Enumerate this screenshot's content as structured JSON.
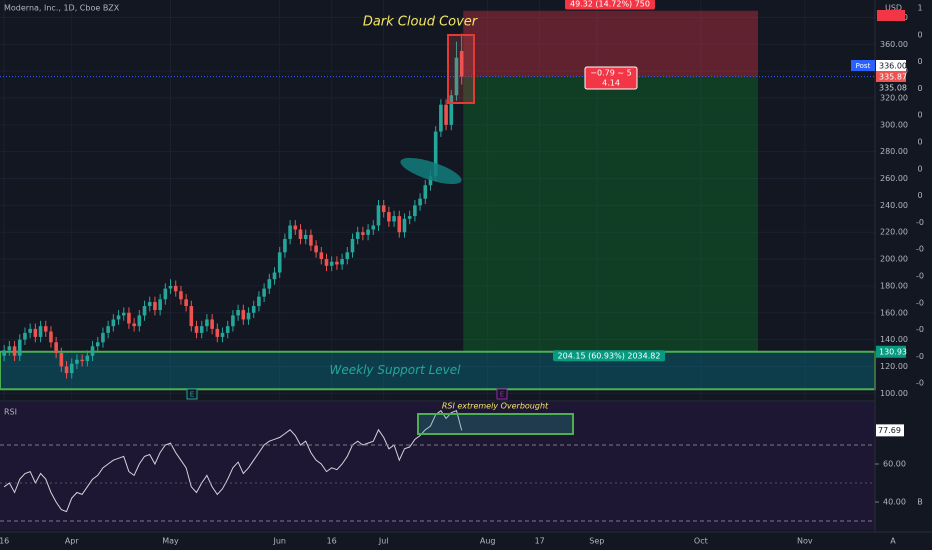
{
  "chart_data": {
    "type": "candlestick",
    "title": "Moderna, Inc., 1D, Cboe BZX",
    "currency": "USD",
    "x": [
      0,
      1,
      2,
      3,
      4,
      5,
      6,
      7,
      8,
      9,
      10,
      11,
      12,
      13,
      14,
      15,
      16,
      17,
      18,
      19,
      20,
      21,
      22,
      23,
      24,
      25,
      26,
      27,
      28,
      29,
      30,
      31,
      32,
      33,
      34,
      35,
      36,
      37,
      38,
      39,
      40,
      41,
      42,
      43,
      44,
      45,
      46,
      47,
      48,
      49,
      50,
      51,
      52,
      53,
      54,
      55,
      56,
      57,
      58,
      59,
      60,
      61,
      62,
      63,
      64,
      65,
      66,
      67,
      68,
      69,
      70,
      71,
      72,
      73,
      74,
      75,
      76,
      77,
      78,
      79,
      80,
      81,
      82,
      83,
      84,
      85,
      86,
      87,
      88
    ],
    "open": [
      128,
      132,
      135,
      128,
      140,
      145,
      148,
      142,
      150,
      146,
      138,
      130,
      120,
      115,
      122,
      125,
      124,
      128,
      135,
      138,
      145,
      150,
      155,
      158,
      160,
      152,
      150,
      158,
      165,
      168,
      162,
      170,
      178,
      180,
      176,
      170,
      165,
      150,
      145,
      150,
      155,
      148,
      142,
      145,
      150,
      158,
      162,
      155,
      160,
      165,
      172,
      178,
      185,
      190,
      205,
      215,
      225,
      222,
      215,
      218,
      210,
      205,
      200,
      195,
      198,
      196,
      200,
      205,
      215,
      220,
      218,
      222,
      225,
      240,
      235,
      228,
      232,
      220,
      230,
      232,
      240,
      245,
      255,
      262,
      295,
      315,
      300,
      322,
      355
    ],
    "high": [
      136,
      139,
      139,
      144,
      149,
      152,
      152,
      154,
      154,
      150,
      142,
      134,
      124,
      126,
      129,
      129,
      132,
      139,
      142,
      149,
      154,
      159,
      162,
      164,
      164,
      156,
      162,
      169,
      172,
      172,
      174,
      182,
      185,
      184,
      180,
      174,
      169,
      154,
      154,
      159,
      159,
      152,
      149,
      154,
      162,
      166,
      166,
      164,
      169,
      176,
      182,
      189,
      194,
      209,
      219,
      229,
      229,
      226,
      222,
      222,
      214,
      209,
      204,
      202,
      202,
      204,
      209,
      219,
      224,
      224,
      226,
      229,
      244,
      244,
      239,
      236,
      236,
      234,
      236,
      244,
      249,
      259,
      266,
      299,
      319,
      319,
      326,
      362,
      368
    ],
    "low": [
      124,
      128,
      124,
      124,
      136,
      141,
      138,
      138,
      142,
      134,
      126,
      116,
      111,
      111,
      118,
      120,
      120,
      124,
      131,
      134,
      141,
      146,
      151,
      154,
      148,
      146,
      146,
      154,
      161,
      158,
      158,
      166,
      174,
      172,
      166,
      161,
      146,
      141,
      141,
      146,
      144,
      138,
      138,
      141,
      146,
      154,
      151,
      151,
      156,
      161,
      168,
      174,
      181,
      186,
      201,
      211,
      218,
      211,
      211,
      206,
      201,
      196,
      191,
      191,
      192,
      192,
      196,
      201,
      211,
      214,
      214,
      218,
      221,
      231,
      224,
      224,
      216,
      216,
      226,
      228,
      236,
      241,
      251,
      258,
      291,
      296,
      296,
      318,
      330
    ],
    "close": [
      132,
      135,
      128,
      140,
      145,
      148,
      142,
      150,
      146,
      138,
      130,
      120,
      115,
      122,
      125,
      124,
      128,
      135,
      138,
      145,
      150,
      155,
      158,
      160,
      152,
      150,
      158,
      165,
      168,
      162,
      170,
      178,
      180,
      176,
      170,
      165,
      150,
      145,
      150,
      155,
      148,
      142,
      145,
      150,
      158,
      162,
      155,
      160,
      165,
      172,
      178,
      185,
      190,
      205,
      215,
      225,
      222,
      215,
      218,
      210,
      205,
      200,
      195,
      198,
      196,
      200,
      205,
      215,
      220,
      218,
      222,
      225,
      240,
      235,
      228,
      232,
      220,
      230,
      232,
      240,
      245,
      255,
      262,
      295,
      315,
      300,
      322,
      350,
      336
    ],
    "up_color": "#26a69a",
    "down_color": "#ef5350",
    "xlim": [
      -0.8,
      167.5
    ],
    "xticks": [
      {
        "value": 0,
        "label": "16"
      },
      {
        "value": 13,
        "label": "Apr"
      },
      {
        "value": 32,
        "label": "May"
      },
      {
        "value": 53,
        "label": "Jun"
      },
      {
        "value": 63,
        "label": "16"
      },
      {
        "value": 73,
        "label": "Jul"
      },
      {
        "value": 93,
        "label": "Aug"
      },
      {
        "value": 103,
        "label": "17"
      },
      {
        "value": 114,
        "label": "Sep"
      },
      {
        "value": 134,
        "label": "Oct"
      },
      {
        "value": 154,
        "label": "Nov"
      }
    ],
    "ylim": [
      95,
      393
    ],
    "yticks": [
      {
        "value": 100,
        "label": "100.00"
      },
      {
        "value": 120,
        "label": "120.00"
      },
      {
        "value": 140,
        "label": "140.00"
      },
      {
        "value": 160,
        "label": "160.00"
      },
      {
        "value": 180,
        "label": "180.00"
      },
      {
        "value": 200,
        "label": "200.00"
      },
      {
        "value": 220,
        "label": "220.00"
      },
      {
        "value": 240,
        "label": "240.00"
      },
      {
        "value": 260,
        "label": "260.00"
      },
      {
        "value": 280,
        "label": "280.00"
      },
      {
        "value": 300,
        "label": "300.00"
      },
      {
        "value": 320,
        "label": "320.00"
      },
      {
        "value": 340,
        "label": "340.00"
      },
      {
        "value": 360,
        "label": "360.00"
      },
      {
        "value": 380,
        "label": "380.00"
      }
    ],
    "grid": true,
    "position": {
      "entry": 335.87,
      "stop": 385,
      "target": 131,
      "x_start": 88.3,
      "x_end": 145,
      "stop_label": "49.32 (14.72%) 750",
      "target_label": "204.15 (60.93%) 2034.82",
      "mid_label": "−0.79 ~ 5",
      "mid_label2": "4.14"
    },
    "support_zone": {
      "low": 103,
      "high": 130.93,
      "label": "Weekly Support Level",
      "price_label": "130.93"
    },
    "annotations": {
      "pattern": "Dark Cloud Cover",
      "rsi_note": "RSI extremely Overbought"
    },
    "price_tags": {
      "post": "Post",
      "post_price": "336.00",
      "last": "335.87",
      "pre": "335.08"
    },
    "events": [
      "E",
      "E"
    ],
    "right_scale": [
      "1",
      "0",
      "0",
      "0",
      "0",
      "0",
      "0",
      "0",
      "-0",
      "-0",
      "-0",
      "-0",
      "-0",
      "-0",
      "-0"
    ],
    "corner_labels": [
      "A",
      "B"
    ],
    "rsi": {
      "title": "RSI",
      "color": "#d1d4dc",
      "values": [
        48,
        50,
        45,
        52,
        55,
        56,
        50,
        55,
        52,
        45,
        40,
        36,
        35,
        42,
        45,
        44,
        48,
        52,
        54,
        58,
        60,
        62,
        63,
        64,
        56,
        54,
        60,
        64,
        65,
        60,
        66,
        70,
        71,
        66,
        62,
        58,
        48,
        45,
        50,
        54,
        48,
        44,
        47,
        52,
        58,
        61,
        55,
        58,
        62,
        66,
        70,
        72,
        73,
        74,
        76,
        78,
        75,
        70,
        72,
        66,
        62,
        60,
        56,
        58,
        57,
        60,
        64,
        70,
        72,
        70,
        71,
        72,
        78,
        74,
        68,
        70,
        62,
        68,
        69,
        73,
        75,
        78,
        80,
        86,
        88,
        84,
        87,
        88,
        77.69
      ],
      "ylim": [
        25.3,
        92.6
      ],
      "yticks": [
        {
          "value": 40,
          "label": "40.00"
        },
        {
          "value": 60,
          "label": "60.00"
        }
      ],
      "last_label": "77.69"
    }
  }
}
